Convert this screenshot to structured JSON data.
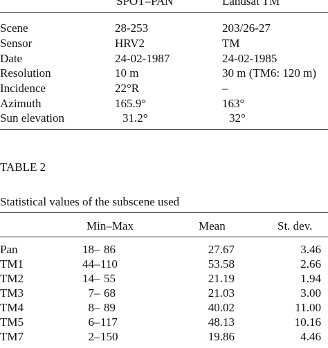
{
  "table1": {
    "headers": {
      "spot": "SPOT–PAN",
      "landsat": "Landsat TM"
    },
    "rows": [
      {
        "label": "Scene",
        "spot": "28-253",
        "landsat": "203/26-27"
      },
      {
        "label": "Sensor",
        "spot": "HRV2",
        "landsat": "TM"
      },
      {
        "label": "Date",
        "spot": "24-02-1987",
        "landsat": "24-02-1985"
      },
      {
        "label": "Resolution",
        "spot": "10 m",
        "landsat": "30 m (TM6: 120 m)"
      },
      {
        "label": "Incidence",
        "spot": "22°R",
        "landsat": "–"
      },
      {
        "label": "Azimuth",
        "spot": "165.9°",
        "landsat": "163°"
      },
      {
        "label": "Sun elevation",
        "spot": "31.2°",
        "landsat": "32°"
      }
    ]
  },
  "table2": {
    "title": "TABLE 2",
    "caption": "Statistical values of the subscene used",
    "headers": {
      "minmax": "Min–Max",
      "mean": "Mean",
      "sd": "St. dev."
    },
    "rows": [
      {
        "band": "Pan",
        "min": "18",
        "max": "86",
        "mean": "27.67",
        "sd": "3.46"
      },
      {
        "band": "TM1",
        "min": "44",
        "max": "110",
        "mean": "53.58",
        "sd": "2.66"
      },
      {
        "band": "TM2",
        "min": "14",
        "max": "55",
        "mean": "21.19",
        "sd": "1.94"
      },
      {
        "band": "TM3",
        "min": "7",
        "max": "68",
        "mean": "21.03",
        "sd": "3.00"
      },
      {
        "band": "TM4",
        "min": "8",
        "max": "89",
        "mean": "40.02",
        "sd": "11.00"
      },
      {
        "band": "TM5",
        "min": "6",
        "max": "117",
        "mean": "48.13",
        "sd": "10.16"
      },
      {
        "band": "TM7",
        "min": "2",
        "max": "150",
        "mean": "19.86",
        "sd": "4.46"
      }
    ],
    "dash": "–"
  }
}
